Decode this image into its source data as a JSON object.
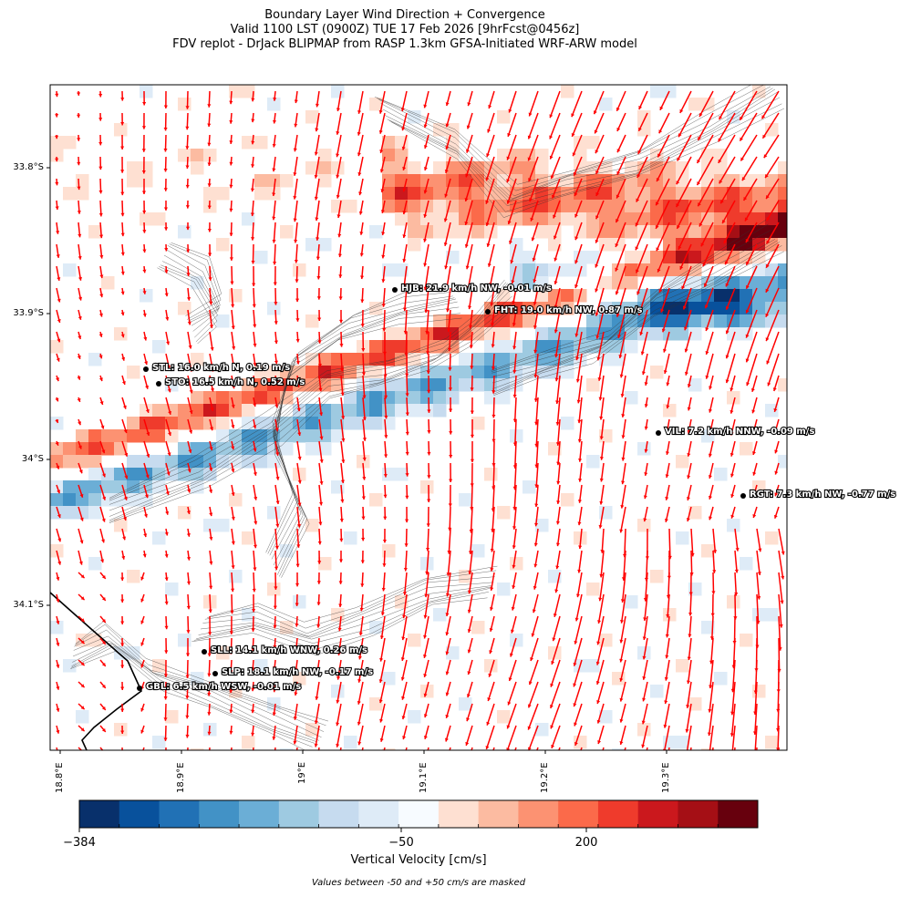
{
  "title": {
    "line1": "Boundary Layer Wind Direction + Convergence",
    "line2": "Valid 1100 LST (0900Z) TUE 17 Feb 2026 [9hrFcst@0456z]",
    "line3": "FDV replot - DrJack BLIPMAP from RASP 1.3km GFSA-Initiated WRF-ARW model"
  },
  "lat_labels": [
    "33.8°S",
    "33.9°S",
    "34°S",
    "34.1°S"
  ],
  "lon_labels": [
    "18.8°E",
    "18.9°E",
    "19°E",
    "19.1°E",
    "19.2°E",
    "19.3°E"
  ],
  "colorbar": {
    "label": "Vertical Velocity [cm/s]",
    "ticks": [
      "−384",
      "−50",
      "200"
    ],
    "colors": [
      "#08306b",
      "#08519c",
      "#2171b5",
      "#4292c6",
      "#6baed6",
      "#9ecae1",
      "#c6dbef",
      "#deebf7",
      "#f7fbff",
      "#fee0d2",
      "#fcbba1",
      "#fc9272",
      "#fb6a4a",
      "#ef3b2c",
      "#cb181d",
      "#a50f15",
      "#67000d"
    ]
  },
  "footnote": "Values between -50 and +50 cm/s are masked",
  "stations": [
    {
      "label": "HJB: 21.9 km/h NW, -0.01 m/s"
    },
    {
      "label": "FHT: 19.0 km/h NW, 0.87 m/s"
    },
    {
      "label": "STL: 16.0 km/h N, 0.19 m/s"
    },
    {
      "label": "STO: 16.5 km/h N, 0.52 m/s"
    },
    {
      "label": "VIL: 7.2 km/h NNW, -0.09 m/s"
    },
    {
      "label": "RGT: 7.3 km/h NW, -0.77 m/s"
    },
    {
      "label": "SLL: 14.1 km/h WNW, 0.26 m/s"
    },
    {
      "label": "SLP: 18.1 km/h NW, -0.17 m/s"
    },
    {
      "label": "GBL: 6.5 km/h WSW, -0.01 m/s"
    }
  ],
  "wind_arrow_color": "#ff0000"
}
